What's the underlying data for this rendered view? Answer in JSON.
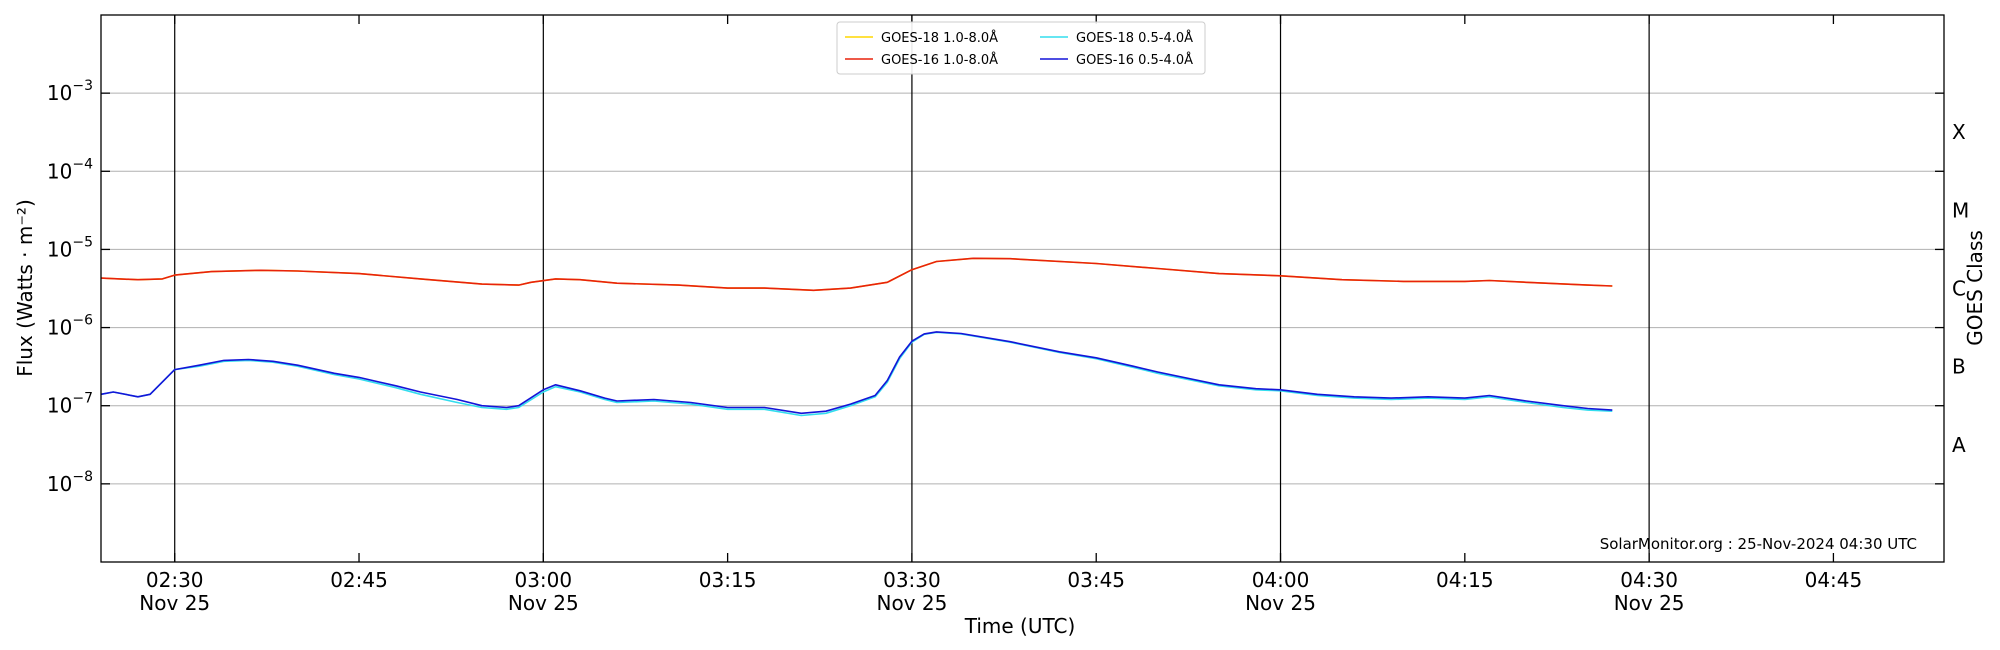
{
  "chart_data": {
    "type": "line",
    "xlabel": "Time (UTC)",
    "ylabel": "Flux (Watts · m⁻²)",
    "right_ylabel": "GOES Class",
    "yscale": "log",
    "ylim": [
      1e-09,
      0.01
    ],
    "xlim": [
      "02:24",
      "04:54"
    ],
    "y_ticks": [
      {
        "value": 1e-08,
        "base": "10",
        "exp": "−8"
      },
      {
        "value": 1e-07,
        "base": "10",
        "exp": "−7"
      },
      {
        "value": 1e-06,
        "base": "10",
        "exp": "−6"
      },
      {
        "value": 1e-05,
        "base": "10",
        "exp": "−5"
      },
      {
        "value": 0.0001,
        "base": "10",
        "exp": "−4"
      },
      {
        "value": 0.001,
        "base": "10",
        "exp": "−3"
      }
    ],
    "x_ticks": [
      {
        "time": "02:30",
        "label": "02:30",
        "sub": "Nov 25",
        "vline": true
      },
      {
        "time": "02:45",
        "label": "02:45",
        "sub": "",
        "vline": false
      },
      {
        "time": "03:00",
        "label": "03:00",
        "sub": "Nov 25",
        "vline": true
      },
      {
        "time": "03:15",
        "label": "03:15",
        "sub": "",
        "vline": false
      },
      {
        "time": "03:30",
        "label": "03:30",
        "sub": "Nov 25",
        "vline": true
      },
      {
        "time": "03:45",
        "label": "03:45",
        "sub": "",
        "vline": false
      },
      {
        "time": "04:00",
        "label": "04:00",
        "sub": "Nov 25",
        "vline": true
      },
      {
        "time": "04:15",
        "label": "04:15",
        "sub": "",
        "vline": false
      },
      {
        "time": "04:30",
        "label": "04:30",
        "sub": "Nov 25",
        "vline": true
      },
      {
        "time": "04:45",
        "label": "04:45",
        "sub": "",
        "vline": false
      }
    ],
    "goes_classes": [
      {
        "label": "A",
        "value": 3.16e-08
      },
      {
        "label": "B",
        "value": 3.16e-07
      },
      {
        "label": "C",
        "value": 3.16e-06
      },
      {
        "label": "M",
        "value": 3.16e-05
      },
      {
        "label": "X",
        "value": 0.000316
      }
    ],
    "grid": true,
    "legend": {
      "placement": "top-center",
      "columns": 2,
      "order": [
        "GOES-18 1.0-8.0Å",
        "GOES-16 1.0-8.0Å",
        "GOES-18 0.5-4.0Å",
        "GOES-16 0.5-4.0Å"
      ]
    },
    "annotation": "SolarMonitor.org : 25-Nov-2024 04:30 UTC",
    "series": [
      {
        "name": "GOES-18 1.0-8.0Å",
        "color": "#ffd700",
        "points": [
          [
            "02:24",
            4.3e-06
          ],
          [
            "02:27",
            4.1e-06
          ],
          [
            "02:29",
            4.2e-06
          ],
          [
            "02:30",
            4.7e-06
          ],
          [
            "02:33",
            5.2e-06
          ],
          [
            "02:37",
            5.4e-06
          ],
          [
            "02:40",
            5.3e-06
          ],
          [
            "02:45",
            4.9e-06
          ],
          [
            "02:50",
            4.2e-06
          ],
          [
            "02:55",
            3.6e-06
          ],
          [
            "02:58",
            3.5e-06
          ],
          [
            "02:59",
            3.8e-06
          ],
          [
            "03:01",
            4.2e-06
          ],
          [
            "03:03",
            4.1e-06
          ],
          [
            "03:06",
            3.7e-06
          ],
          [
            "03:11",
            3.5e-06
          ],
          [
            "03:15",
            3.2e-06
          ],
          [
            "03:18",
            3.2e-06
          ],
          [
            "03:22",
            3e-06
          ],
          [
            "03:25",
            3.2e-06
          ],
          [
            "03:28",
            3.8e-06
          ],
          [
            "03:30",
            5.5e-06
          ],
          [
            "03:32",
            7e-06
          ],
          [
            "03:35",
            7.7e-06
          ],
          [
            "03:38",
            7.6e-06
          ],
          [
            "03:45",
            6.6e-06
          ],
          [
            "03:50",
            5.7e-06
          ],
          [
            "03:55",
            4.9e-06
          ],
          [
            "04:00",
            4.6e-06
          ],
          [
            "04:05",
            4.1e-06
          ],
          [
            "04:10",
            3.9e-06
          ],
          [
            "04:15",
            3.9e-06
          ],
          [
            "04:17",
            4e-06
          ],
          [
            "04:20",
            3.8e-06
          ],
          [
            "04:25",
            3.5e-06
          ],
          [
            "04:27",
            3.4e-06
          ]
        ]
      },
      {
        "name": "GOES-16 1.0-8.0Å",
        "color": "#e8220c",
        "points": [
          [
            "02:24",
            4.3e-06
          ],
          [
            "02:27",
            4.1e-06
          ],
          [
            "02:29",
            4.2e-06
          ],
          [
            "02:30",
            4.7e-06
          ],
          [
            "02:33",
            5.2e-06
          ],
          [
            "02:37",
            5.4e-06
          ],
          [
            "02:40",
            5.3e-06
          ],
          [
            "02:45",
            4.9e-06
          ],
          [
            "02:50",
            4.2e-06
          ],
          [
            "02:55",
            3.6e-06
          ],
          [
            "02:58",
            3.5e-06
          ],
          [
            "02:59",
            3.8e-06
          ],
          [
            "03:01",
            4.2e-06
          ],
          [
            "03:03",
            4.1e-06
          ],
          [
            "03:06",
            3.7e-06
          ],
          [
            "03:11",
            3.5e-06
          ],
          [
            "03:15",
            3.2e-06
          ],
          [
            "03:18",
            3.2e-06
          ],
          [
            "03:22",
            3e-06
          ],
          [
            "03:25",
            3.2e-06
          ],
          [
            "03:28",
            3.8e-06
          ],
          [
            "03:30",
            5.5e-06
          ],
          [
            "03:32",
            7e-06
          ],
          [
            "03:35",
            7.7e-06
          ],
          [
            "03:38",
            7.6e-06
          ],
          [
            "03:45",
            6.6e-06
          ],
          [
            "03:50",
            5.7e-06
          ],
          [
            "03:55",
            4.9e-06
          ],
          [
            "04:00",
            4.6e-06
          ],
          [
            "04:05",
            4.1e-06
          ],
          [
            "04:10",
            3.9e-06
          ],
          [
            "04:15",
            3.9e-06
          ],
          [
            "04:17",
            4e-06
          ],
          [
            "04:20",
            3.8e-06
          ],
          [
            "04:25",
            3.5e-06
          ],
          [
            "04:27",
            3.4e-06
          ]
        ]
      },
      {
        "name": "GOES-18 0.5-4.0Å",
        "color": "#33ddee",
        "points": [
          [
            "02:24",
            1.4e-07
          ],
          [
            "02:25",
            1.5e-07
          ],
          [
            "02:27",
            1.3e-07
          ],
          [
            "02:28",
            1.4e-07
          ],
          [
            "02:30",
            2.9e-07
          ],
          [
            "02:32",
            3.2e-07
          ],
          [
            "02:34",
            3.7e-07
          ],
          [
            "02:36",
            3.8e-07
          ],
          [
            "02:38",
            3.6e-07
          ],
          [
            "02:40",
            3.2e-07
          ],
          [
            "02:43",
            2.5e-07
          ],
          [
            "02:45",
            2.2e-07
          ],
          [
            "02:48",
            1.7e-07
          ],
          [
            "02:50",
            1.4e-07
          ],
          [
            "02:53",
            1.1e-07
          ],
          [
            "02:55",
            9.5e-08
          ],
          [
            "02:57",
            9e-08
          ],
          [
            "02:58",
            9.5e-08
          ],
          [
            "03:00",
            1.5e-07
          ],
          [
            "03:01",
            1.75e-07
          ],
          [
            "03:03",
            1.5e-07
          ],
          [
            "03:05",
            1.2e-07
          ],
          [
            "03:06",
            1.1e-07
          ],
          [
            "03:09",
            1.15e-07
          ],
          [
            "03:12",
            1.05e-07
          ],
          [
            "03:15",
            9e-08
          ],
          [
            "03:18",
            9e-08
          ],
          [
            "03:21",
            7.5e-08
          ],
          [
            "03:23",
            8e-08
          ],
          [
            "03:25",
            1e-07
          ],
          [
            "03:27",
            1.3e-07
          ],
          [
            "03:28",
            2e-07
          ],
          [
            "03:29",
            4e-07
          ],
          [
            "03:30",
            6.5e-07
          ],
          [
            "03:31",
            8.2e-07
          ],
          [
            "03:32",
            8.7e-07
          ],
          [
            "03:34",
            8.3e-07
          ],
          [
            "03:38",
            6.5e-07
          ],
          [
            "03:42",
            4.8e-07
          ],
          [
            "03:45",
            4e-07
          ],
          [
            "03:48",
            3.1e-07
          ],
          [
            "03:50",
            2.6e-07
          ],
          [
            "03:55",
            1.8e-07
          ],
          [
            "03:58",
            1.6e-07
          ],
          [
            "04:00",
            1.55e-07
          ],
          [
            "04:03",
            1.35e-07
          ],
          [
            "04:06",
            1.25e-07
          ],
          [
            "04:09",
            1.2e-07
          ],
          [
            "04:12",
            1.25e-07
          ],
          [
            "04:15",
            1.2e-07
          ],
          [
            "04:17",
            1.3e-07
          ],
          [
            "04:20",
            1.1e-07
          ],
          [
            "04:23",
            9.5e-08
          ],
          [
            "04:25",
            8.8e-08
          ],
          [
            "04:27",
            8.5e-08
          ]
        ]
      },
      {
        "name": "GOES-16 0.5-4.0Å",
        "color": "#1414d8",
        "points": [
          [
            "02:24",
            1.4e-07
          ],
          [
            "02:25",
            1.5e-07
          ],
          [
            "02:27",
            1.3e-07
          ],
          [
            "02:28",
            1.4e-07
          ],
          [
            "02:30",
            2.9e-07
          ],
          [
            "02:32",
            3.3e-07
          ],
          [
            "02:34",
            3.8e-07
          ],
          [
            "02:36",
            3.9e-07
          ],
          [
            "02:38",
            3.7e-07
          ],
          [
            "02:40",
            3.3e-07
          ],
          [
            "02:43",
            2.6e-07
          ],
          [
            "02:45",
            2.3e-07
          ],
          [
            "02:48",
            1.8e-07
          ],
          [
            "02:50",
            1.5e-07
          ],
          [
            "02:53",
            1.2e-07
          ],
          [
            "02:55",
            1e-07
          ],
          [
            "02:57",
            9.5e-08
          ],
          [
            "02:58",
            1e-07
          ],
          [
            "03:00",
            1.6e-07
          ],
          [
            "03:01",
            1.85e-07
          ],
          [
            "03:03",
            1.55e-07
          ],
          [
            "03:05",
            1.25e-07
          ],
          [
            "03:06",
            1.15e-07
          ],
          [
            "03:09",
            1.2e-07
          ],
          [
            "03:12",
            1.1e-07
          ],
          [
            "03:15",
            9.5e-08
          ],
          [
            "03:18",
            9.5e-08
          ],
          [
            "03:21",
            8e-08
          ],
          [
            "03:23",
            8.5e-08
          ],
          [
            "03:25",
            1.05e-07
          ],
          [
            "03:27",
            1.35e-07
          ],
          [
            "03:28",
            2.1e-07
          ],
          [
            "03:29",
            4.2e-07
          ],
          [
            "03:30",
            6.7e-07
          ],
          [
            "03:31",
            8.3e-07
          ],
          [
            "03:32",
            8.8e-07
          ],
          [
            "03:34",
            8.4e-07
          ],
          [
            "03:38",
            6.6e-07
          ],
          [
            "03:42",
            4.9e-07
          ],
          [
            "03:45",
            4.1e-07
          ],
          [
            "03:48",
            3.2e-07
          ],
          [
            "03:50",
            2.7e-07
          ],
          [
            "03:55",
            1.85e-07
          ],
          [
            "03:58",
            1.65e-07
          ],
          [
            "04:00",
            1.6e-07
          ],
          [
            "04:03",
            1.4e-07
          ],
          [
            "04:06",
            1.3e-07
          ],
          [
            "04:09",
            1.25e-07
          ],
          [
            "04:12",
            1.3e-07
          ],
          [
            "04:15",
            1.25e-07
          ],
          [
            "04:17",
            1.35e-07
          ],
          [
            "04:20",
            1.15e-07
          ],
          [
            "04:23",
            1e-07
          ],
          [
            "04:25",
            9.2e-08
          ],
          [
            "04:27",
            8.8e-08
          ]
        ]
      }
    ]
  }
}
